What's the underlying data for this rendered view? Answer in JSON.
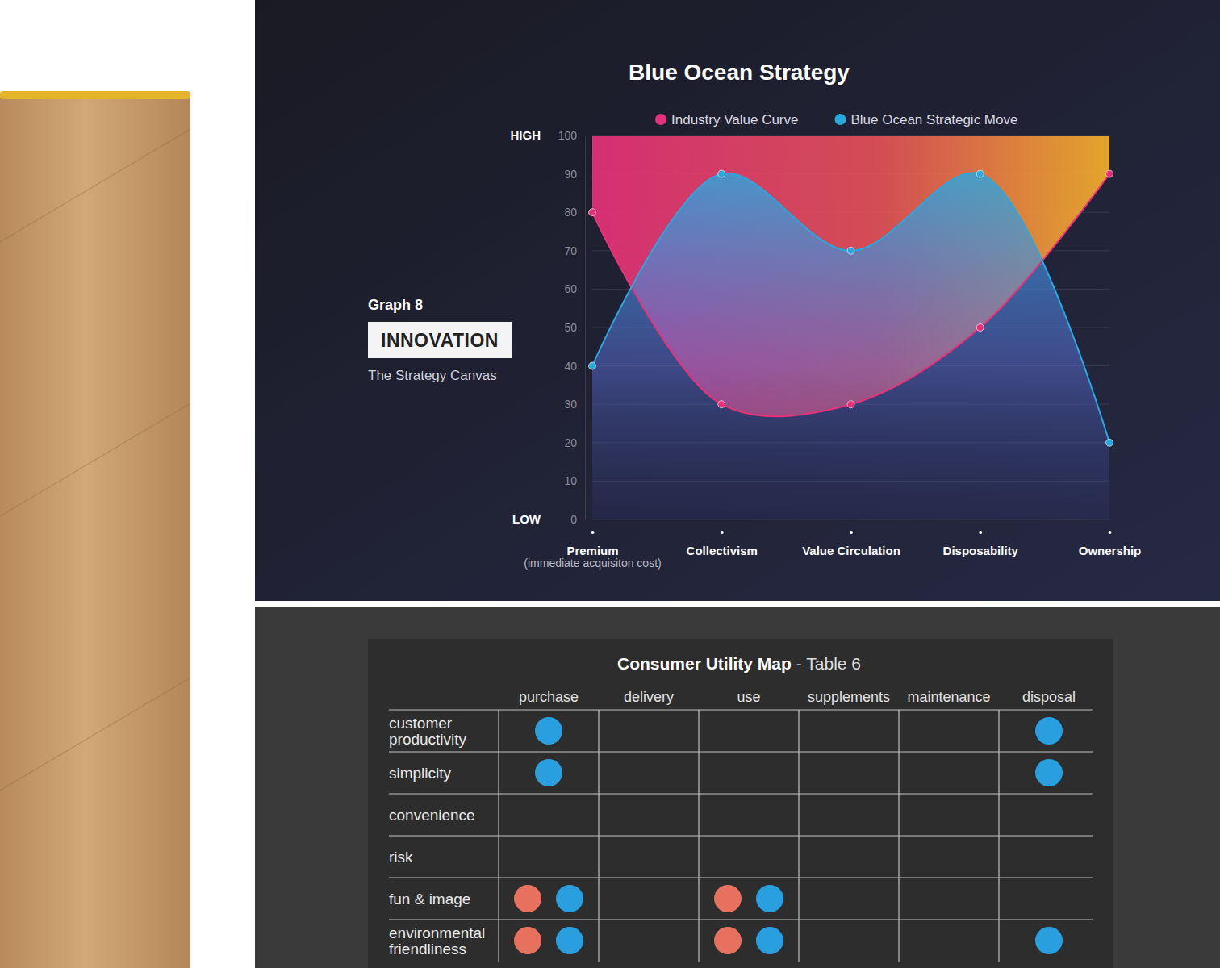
{
  "chart_data": {
    "type": "line",
    "title": "Blue Ocean Strategy",
    "categories": [
      "Premium\n(immediate acquisiton cost)",
      "Collectivism",
      "Value Circulation",
      "Disposability",
      "Ownership"
    ],
    "series": [
      {
        "name": "Industry Value Curve",
        "color": "#e8317a",
        "marker": "circle",
        "values": [
          80,
          30,
          30,
          50,
          90
        ]
      },
      {
        "name": "Blue Ocean Strategic Move",
        "color": "#29a8e0",
        "marker": "circle",
        "values": [
          40,
          90,
          70,
          90,
          20
        ]
      }
    ],
    "ylim": [
      0,
      100
    ],
    "yticks": [
      0,
      10,
      20,
      30,
      40,
      50,
      60,
      70,
      80,
      90,
      100
    ],
    "grid": true,
    "legend": "top",
    "y_labels": [
      {
        "value": 100,
        "label": "HIGH"
      },
      {
        "value": 0,
        "label": "LOW"
      }
    ],
    "annotations": [
      "Graph 8",
      "INNOVATION",
      "The Strategy Canvas"
    ]
  },
  "table": {
    "title": "Consumer Utility Map",
    "subtitle": "- Table 6",
    "columns": [
      "purchase",
      "delivery",
      "use",
      "supplements",
      "maintenance",
      "disposal"
    ],
    "rows": [
      "customer\nproductivity",
      "simplicity",
      "convenience",
      "risk",
      "fun & image",
      "environmental\nfriendliness"
    ],
    "markers": [
      {
        "color": "#e8705f",
        "cells": [
          [
            0,
            0,
            0,
            0,
            0,
            0
          ],
          [
            0,
            0,
            0,
            0,
            0,
            0
          ],
          [
            0,
            0,
            0,
            0,
            0,
            0
          ],
          [
            0,
            0,
            0,
            0,
            0,
            0
          ],
          [
            1,
            0,
            1,
            0,
            0,
            0
          ],
          [
            1,
            0,
            1,
            0,
            0,
            0
          ]
        ]
      },
      {
        "color": "#2a9fe0",
        "cells": [
          [
            1,
            0,
            0,
            0,
            0,
            1
          ],
          [
            1,
            0,
            0,
            0,
            0,
            1
          ],
          [
            0,
            0,
            0,
            0,
            0,
            0
          ],
          [
            0,
            0,
            0,
            0,
            0,
            0
          ],
          [
            1,
            0,
            1,
            0,
            0,
            0
          ],
          [
            1,
            0,
            1,
            0,
            0,
            1
          ]
        ]
      }
    ]
  }
}
